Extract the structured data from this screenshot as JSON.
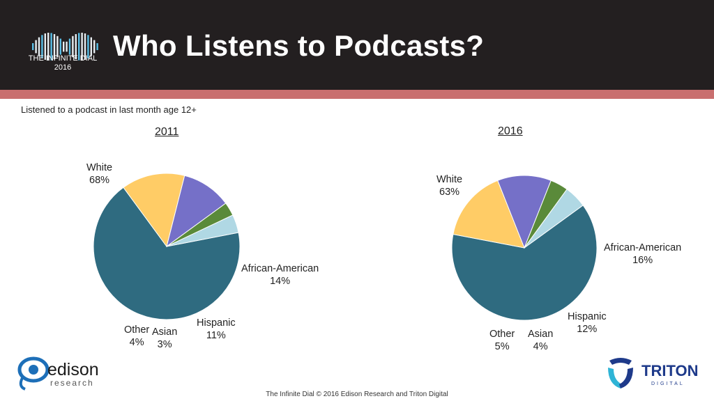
{
  "header": {
    "title": "Who Listens to Podcasts?",
    "logo_line1": "THE INFINITE DIAL",
    "logo_line2": "2016"
  },
  "subtitle": "Listened to a podcast in last month age 12+",
  "chart_data": [
    {
      "type": "pie",
      "title": "2011",
      "slices": [
        {
          "label": "White",
          "value": 68,
          "pct": "68%",
          "color": "#2f6b80"
        },
        {
          "label": "African-American",
          "value": 14,
          "pct": "14%",
          "color": "#ffcc66"
        },
        {
          "label": "Hispanic",
          "value": 11,
          "pct": "11%",
          "color": "#7570c8"
        },
        {
          "label": "Asian",
          "value": 3,
          "pct": "3%",
          "color": "#5a8a3a"
        },
        {
          "label": "Other",
          "value": 4,
          "pct": "4%",
          "color": "#b0d8e4"
        }
      ]
    },
    {
      "type": "pie",
      "title": "2016",
      "slices": [
        {
          "label": "White",
          "value": 63,
          "pct": "63%",
          "color": "#2f6b80"
        },
        {
          "label": "African-American",
          "value": 16,
          "pct": "16%",
          "color": "#ffcc66"
        },
        {
          "label": "Hispanic",
          "value": 12,
          "pct": "12%",
          "color": "#7570c8"
        },
        {
          "label": "Asian",
          "value": 4,
          "pct": "4%",
          "color": "#5a8a3a"
        },
        {
          "label": "Other",
          "value": 5,
          "pct": "5%",
          "color": "#b0d8e4"
        }
      ]
    }
  ],
  "logos": {
    "edison_name": "edison",
    "edison_sub": "research",
    "triton_name": "TRITON",
    "triton_sub": "DIGITAL"
  },
  "footer": "The Infinite Dial   © 2016 Edison Research and Triton Digital"
}
